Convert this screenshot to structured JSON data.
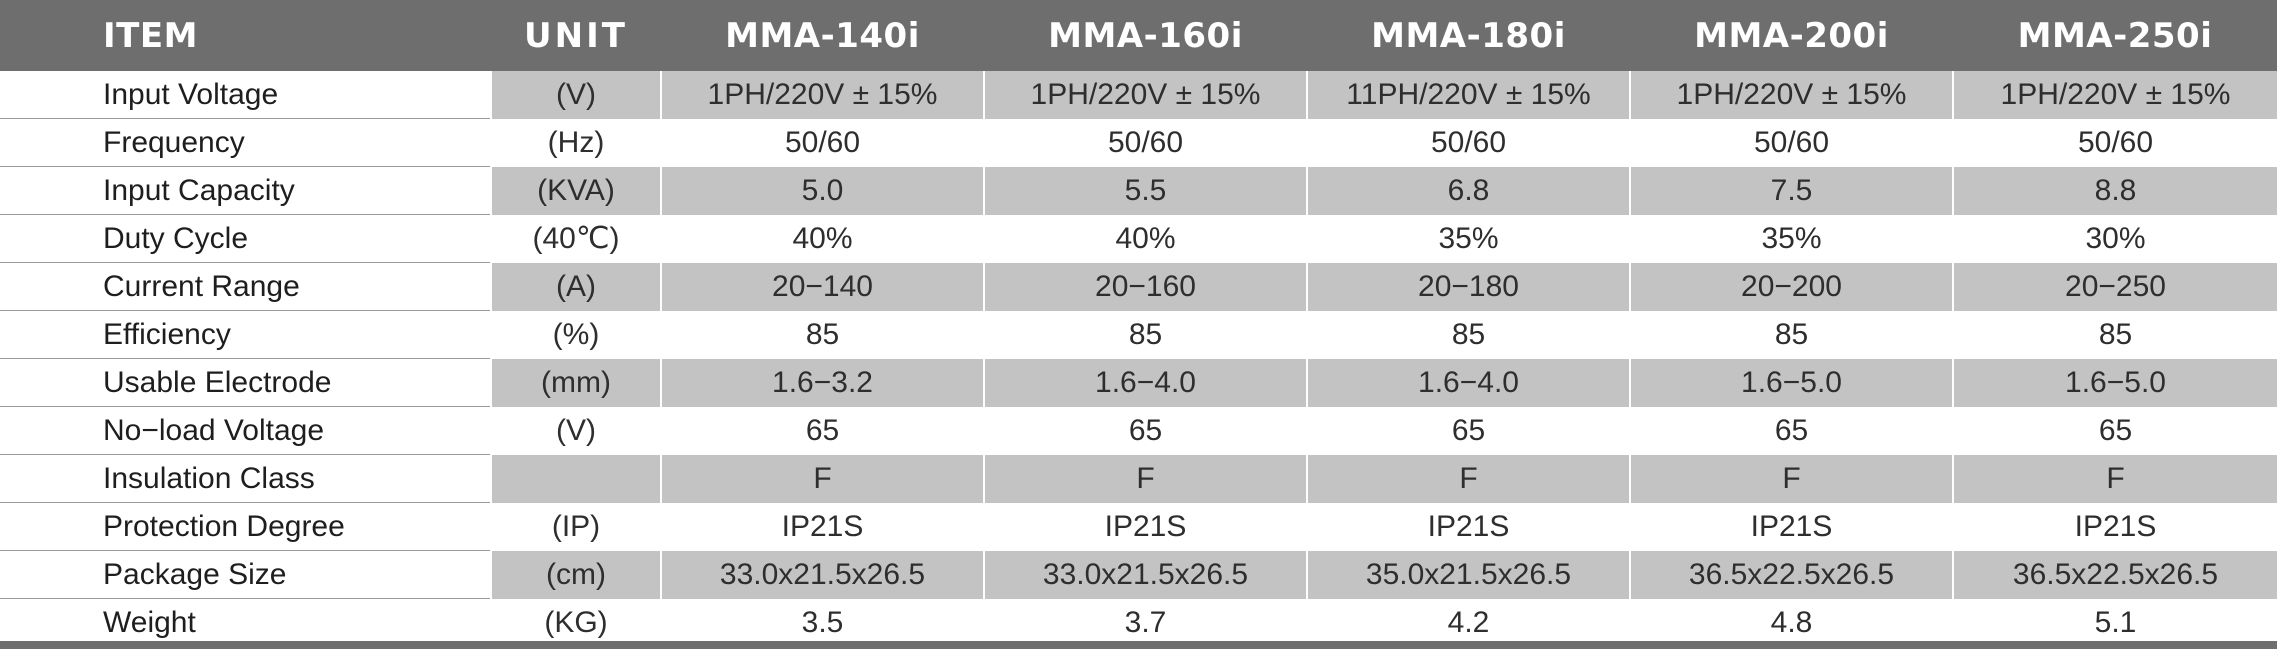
{
  "headers": {
    "item": "ITEM",
    "unit": "UNIT",
    "models": [
      "MMA-140i",
      "MMA-160i",
      "MMA-180i",
      "MMA-200i",
      "MMA-250i"
    ]
  },
  "rows": [
    {
      "item": "Input Voltage",
      "unit": "(V)",
      "values": [
        "1PH/220V ± 15%",
        "1PH/220V ± 15%",
        "11PH/220V ± 15%",
        "1PH/220V ± 15%",
        "1PH/220V ± 15%"
      ]
    },
    {
      "item": "Frequency",
      "unit": "(Hz)",
      "values": [
        "50/60",
        "50/60",
        "50/60",
        "50/60",
        "50/60"
      ]
    },
    {
      "item": "Input Capacity",
      "unit": "(KVA)",
      "values": [
        "5.0",
        "5.5",
        "6.8",
        "7.5",
        "8.8"
      ]
    },
    {
      "item": "Duty Cycle",
      "unit": "(40℃)",
      "values": [
        "40%",
        "40%",
        "35%",
        "35%",
        "30%"
      ]
    },
    {
      "item": "Current Range",
      "unit": "(A)",
      "values": [
        "20−140",
        "20−160",
        "20−180",
        "20−200",
        "20−250"
      ]
    },
    {
      "item": "Efficiency",
      "unit": "(%)",
      "values": [
        "85",
        "85",
        "85",
        "85",
        "85"
      ]
    },
    {
      "item": "Usable Electrode",
      "unit": "(mm)",
      "values": [
        "1.6−3.2",
        "1.6−4.0",
        "1.6−4.0",
        "1.6−5.0",
        "1.6−5.0"
      ]
    },
    {
      "item": "No−load Voltage",
      "unit": "(V)",
      "values": [
        "65",
        "65",
        "65",
        "65",
        "65"
      ]
    },
    {
      "item": "Insulation Class",
      "unit": "",
      "values": [
        "F",
        "F",
        "F",
        "F",
        "F"
      ]
    },
    {
      "item": "Protection Degree",
      "unit": "(IP)",
      "values": [
        "IP21S",
        "IP21S",
        "IP21S",
        "IP21S",
        "IP21S"
      ]
    },
    {
      "item": "Package Size",
      "unit": "(cm)",
      "values": [
        "33.0x21.5x26.5",
        "33.0x21.5x26.5",
        "35.0x21.5x26.5",
        "36.5x22.5x26.5",
        "36.5x22.5x26.5"
      ]
    },
    {
      "item": "Weight",
      "unit": "(KG)",
      "values": [
        "3.5",
        "3.7",
        "4.2",
        "4.8",
        "5.1"
      ]
    }
  ],
  "colors": {
    "header_bg": "#6e6e6f",
    "header_text": "#ffffff",
    "shaded_cell": "#c3c3c4",
    "text": "#2e2e2e"
  }
}
